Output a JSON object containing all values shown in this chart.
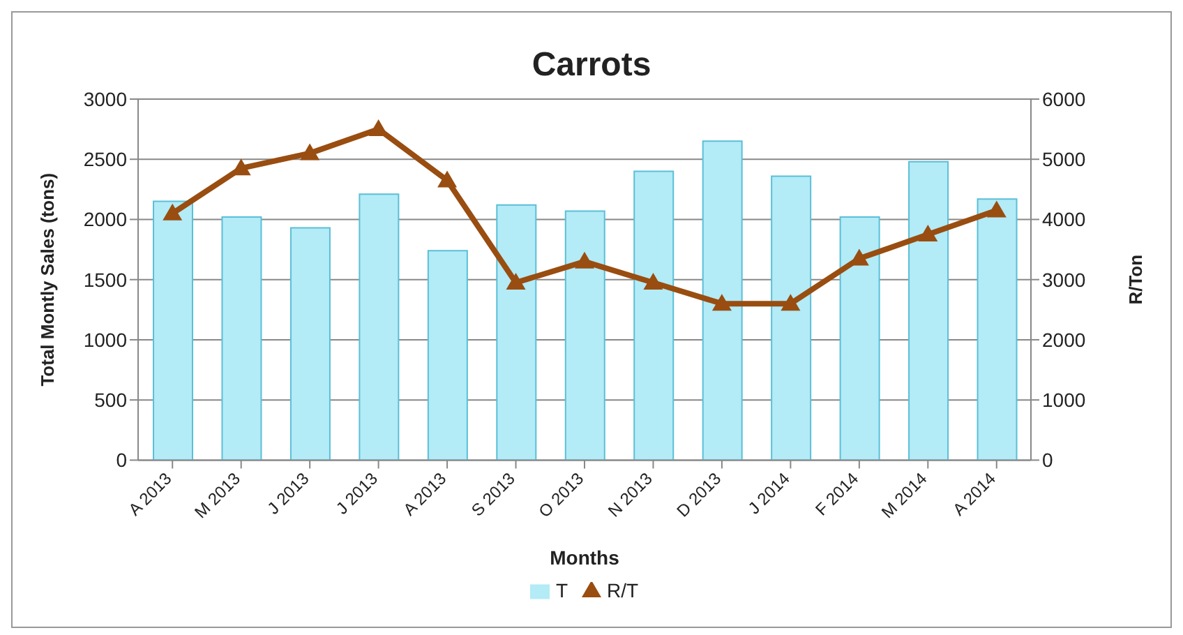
{
  "chart_data": {
    "type": "bar",
    "title": "Carrots",
    "xlabel": "Months",
    "ylabel": "Total Montly Sales (tons)",
    "y2label": "R/Ton",
    "categories": [
      "A 2013",
      "M 2013",
      "J 2013",
      "J 2013",
      "A 2013",
      "S 2013",
      "O 2013",
      "N 2013",
      "D 2013",
      "J 2014",
      "F 2014",
      "M 2014",
      "A 2014"
    ],
    "series": [
      {
        "name": "T",
        "color": "#b3ebf7",
        "values": [
          2150,
          2020,
          1930,
          2210,
          1740,
          2120,
          2070,
          2400,
          2650,
          2360,
          2020,
          2480,
          2170
        ]
      },
      {
        "name": "R/T",
        "type": "line",
        "axis": "y2",
        "color": "#994d10",
        "marker": "triangle",
        "values": [
          4100,
          4850,
          5100,
          5500,
          4650,
          2950,
          3300,
          2950,
          2600,
          2600,
          3350,
          3750,
          4150
        ]
      }
    ],
    "ylim": [
      0,
      3000
    ],
    "yticks": [
      0,
      500,
      1000,
      1500,
      2000,
      2500,
      3000
    ],
    "y2lim": [
      0,
      6000
    ],
    "y2ticks": [
      0,
      1000,
      2000,
      3000,
      4000,
      5000,
      6000
    ],
    "grid": "y",
    "legend": "bottom"
  }
}
